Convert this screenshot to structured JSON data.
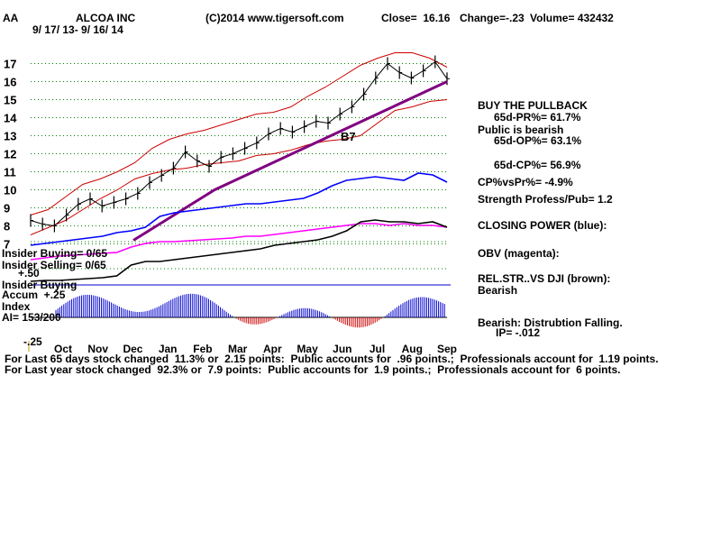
{
  "header": {
    "ticker": "AA",
    "company": "ALCOA INC",
    "date_range": "9/ 17/ 13- 9/ 16/ 14",
    "copyright": "(C)2014 www.tigersoft.com",
    "close": "Close=  16.16",
    "change": "Change=-.23",
    "volume": "Volume= 432432"
  },
  "right_panel": {
    "buy_pullback": "BUY THE PULLBACK",
    "pr": "65d-PR%= 61.7%",
    "public_bearish": "Public is bearish",
    "op": "65d-OP%= 63.1%",
    "cp": "65d-CP%= 56.9%",
    "cpvspr": "CP%vsPr%= -4.9%",
    "strength": "Strength Profess/Pub= 1.2",
    "closing_power": "CLOSING POWER (blue):",
    "obv": "OBV (magenta):",
    "relstr": "REL.STR..VS DJI (brown):",
    "relstr_state": "Bearish",
    "dist": "Bearish: Distrubtion Falling.",
    "ip": "IP= -.012"
  },
  "left_panel": {
    "insider_buying": "Insider Buying= 0/65",
    "insider_selling": "Insider Selling= 0/65",
    "plus50": "+.50",
    "insider_buying2": "Insider Buying",
    "accum": "Accum  +.25",
    "index": "Index",
    "ai": "AI= 153/200",
    "minus25": "-.25"
  },
  "annotation": "B7",
  "footer": {
    "line1": "For Last 65 days stock changed  11.3% or  2.15 points:  Public accounts for  .96 points.;  Professionals account for  1.19 points.",
    "line2": "For Last year stock changed  92.3% or  7.9 points:  Public accounts for  1.9 points.;  Professionals account for  6 points."
  },
  "colors": {
    "price": "#000000",
    "bands": "#cc0000",
    "ma": "#800080",
    "closing_power": "#0000ff",
    "obv": "#ff00ff",
    "relstr": "#000000",
    "accum_pos": "#0000cc",
    "accum_neg": "#cc0000",
    "grid": "#008000"
  },
  "chart_data": {
    "type": "line",
    "title": "ALCOA INC",
    "xlabel": "",
    "ylabel": "",
    "x_ticks": [
      "Oct",
      "Nov",
      "Dec",
      "Jan",
      "Feb",
      "Mar",
      "Apr",
      "May",
      "Jun",
      "Jul",
      "Aug",
      "Sep"
    ],
    "y_ticks": [
      7,
      8,
      9,
      10,
      11,
      12,
      13,
      14,
      15,
      16,
      17
    ],
    "ylim": [
      6.5,
      17.5
    ],
    "grid": true,
    "series": [
      {
        "values": [
          8.3,
          8.1,
          8.0,
          8.6,
          9.2,
          9.5,
          9.1,
          9.3,
          9.5,
          9.8,
          10.4,
          10.8,
          11.2,
          12.1,
          11.6,
          11.3,
          11.8,
          12.0,
          12.3,
          12.6,
          13.1,
          13.4,
          13.2,
          13.5,
          13.8,
          13.7,
          14.2,
          14.6,
          15.3,
          16.2,
          17.0,
          16.5,
          16.2,
          16.6,
          17.1,
          16.16
        ],
        "marks": "ohlc"
      },
      {
        "values": [
          7.2,
          7.6,
          8.0,
          8.4,
          8.8,
          9.2,
          9.6,
          10.0,
          10.3,
          10.6,
          10.9,
          11.2,
          11.5,
          11.8,
          12.1,
          12.4,
          12.7,
          13.0,
          13.3,
          13.6,
          13.9,
          14.2,
          14.5,
          14.8,
          15.1,
          15.4,
          15.7,
          16.0
        ],
        "marks": "moving-average"
      }
    ],
    "upper_band": [
      8.6,
      8.9,
      9.6,
      10.3,
      10.6,
      11.0,
      11.5,
      12.3,
      12.8,
      13.1,
      13.3,
      13.6,
      13.9,
      14.2,
      14.3,
      14.6,
      15.2,
      15.7,
      16.3,
      16.9,
      17.3,
      17.6,
      17.6,
      17.3,
      16.8
    ],
    "lower_band": [
      7.5,
      7.9,
      8.3,
      8.9,
      9.5,
      10.0,
      10.6,
      10.9,
      11.1,
      11.2,
      11.4,
      11.5,
      11.6,
      11.9,
      12.0,
      12.2,
      12.5,
      12.7,
      12.8,
      13.0,
      13.7,
      14.4,
      14.6,
      14.9,
      15.0
    ]
  }
}
